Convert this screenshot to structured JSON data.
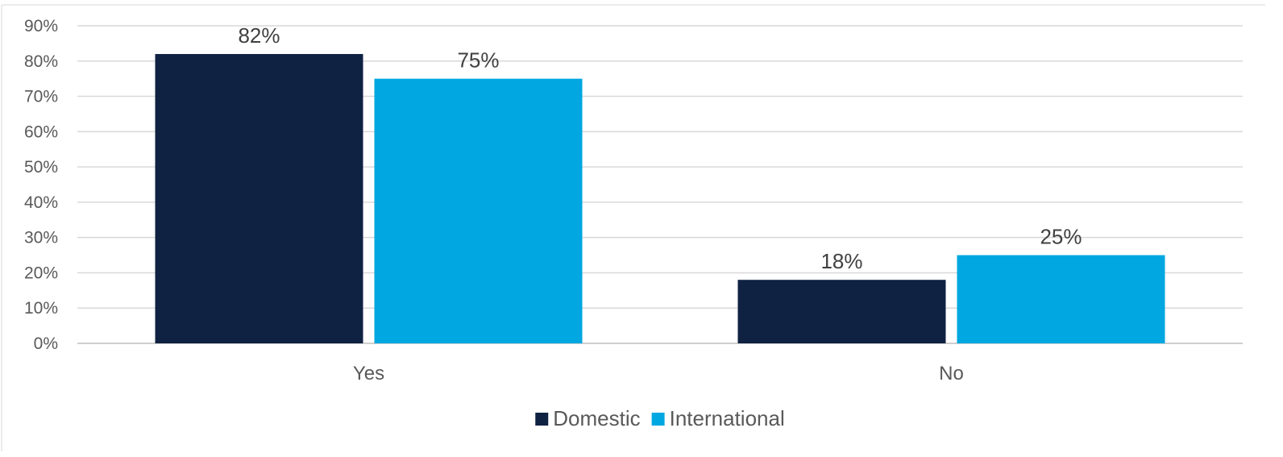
{
  "chart_data": {
    "type": "bar",
    "categories": [
      "Yes",
      "No"
    ],
    "series": [
      {
        "name": "Domestic",
        "values": [
          82,
          18
        ],
        "color": "#0f2242"
      },
      {
        "name": "International",
        "values": [
          75,
          25
        ],
        "color": "#00a7e1"
      }
    ],
    "data_labels": [
      [
        "82%",
        "18%"
      ],
      [
        "75%",
        "25%"
      ]
    ],
    "ylim": [
      0,
      90
    ],
    "yticks": [
      0,
      10,
      20,
      30,
      40,
      50,
      60,
      70,
      80,
      90
    ],
    "ytick_labels": [
      "0%",
      "10%",
      "20%",
      "30%",
      "40%",
      "50%",
      "60%",
      "70%",
      "80%",
      "90%"
    ],
    "title": "",
    "xlabel": "",
    "ylabel": "",
    "grid": true,
    "legend_position": "bottom"
  }
}
